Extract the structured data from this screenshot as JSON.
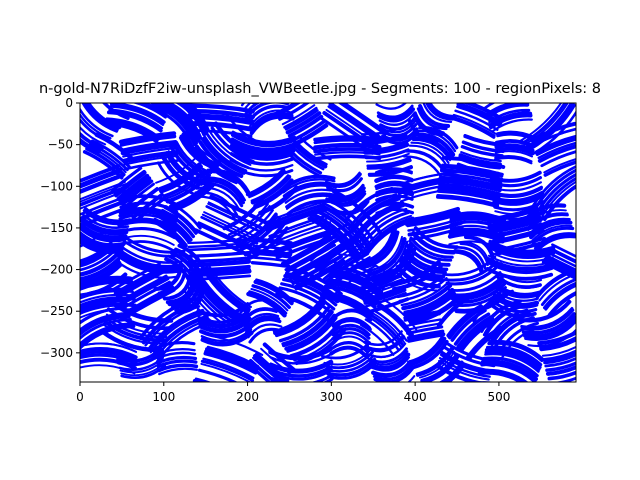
{
  "chart_data": {
    "type": "line",
    "title": "n-gold-N7RiDzfF2iw-unsplash_VWBeetle.jpg - Segments: 100 - regionPixels: 8",
    "xlabel": "",
    "ylabel": "",
    "xlim": [
      0,
      592
    ],
    "ylim": [
      -335,
      0
    ],
    "x_ticks": [
      0,
      100,
      200,
      300,
      400,
      500
    ],
    "y_ticks": [
      0,
      -50,
      -100,
      -150,
      -200,
      -250,
      -300
    ],
    "x_tick_labels": [
      "0",
      "100",
      "200",
      "300",
      "400",
      "500"
    ],
    "y_tick_labels": [
      "0",
      "−50",
      "−100",
      "−150",
      "−200",
      "−250",
      "−300"
    ],
    "series_color": "#0000ff",
    "grid": false,
    "legend": "none",
    "description_of_marks": "dense blue stroke contours (segment boundaries)"
  }
}
